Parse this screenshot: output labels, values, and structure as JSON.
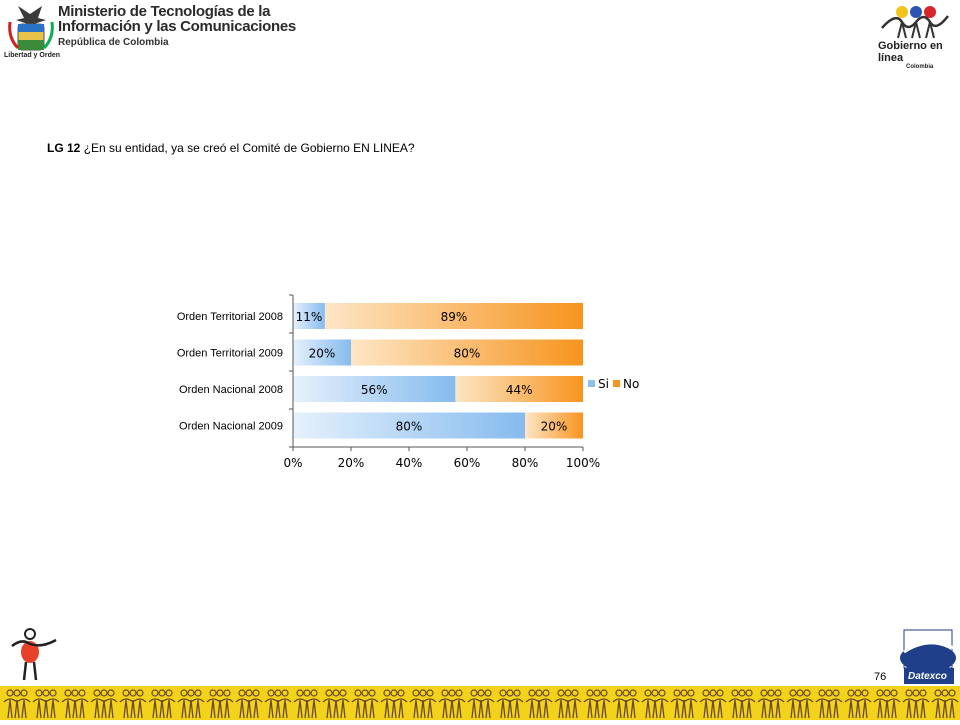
{
  "header": {
    "ministry_line1": "Ministerio de Tecnologías de la",
    "ministry_line2": "Información y las Comunicaciones",
    "ministry_line3": "República de Colombia",
    "seal_caption": "Libertad y Orden",
    "gel_title": "Gobierno en línea",
    "gel_country": "Colombia"
  },
  "question": {
    "code": "LG 12",
    "text": "¿En su entidad, ya se creó el Comité de Gobierno EN LINEA?"
  },
  "footer": {
    "page_number": "76",
    "datexco_label": "Datexco"
  },
  "colors": {
    "si": "#8ec0ee",
    "no": "#f7941e",
    "band": "#f2d21a"
  },
  "chart_data": {
    "type": "bar",
    "orientation": "horizontal",
    "stacked": true,
    "categories": [
      "Orden Territorial 2008",
      "Orden Territorial 2009",
      "Orden Nacional 2008",
      "Orden Nacional 2009"
    ],
    "series": [
      {
        "name": "Si",
        "values": [
          11,
          20,
          56,
          80
        ],
        "labels": [
          "11%",
          "20%",
          "56%",
          "80%"
        ]
      },
      {
        "name": "No",
        "values": [
          89,
          80,
          44,
          20
        ],
        "labels": [
          "89%",
          "80%",
          "44%",
          "20%"
        ]
      }
    ],
    "xlim": [
      0,
      100
    ],
    "xticks": [
      "0%",
      "20%",
      "40%",
      "60%",
      "80%",
      "100%"
    ],
    "grid": false,
    "legend": "right"
  }
}
